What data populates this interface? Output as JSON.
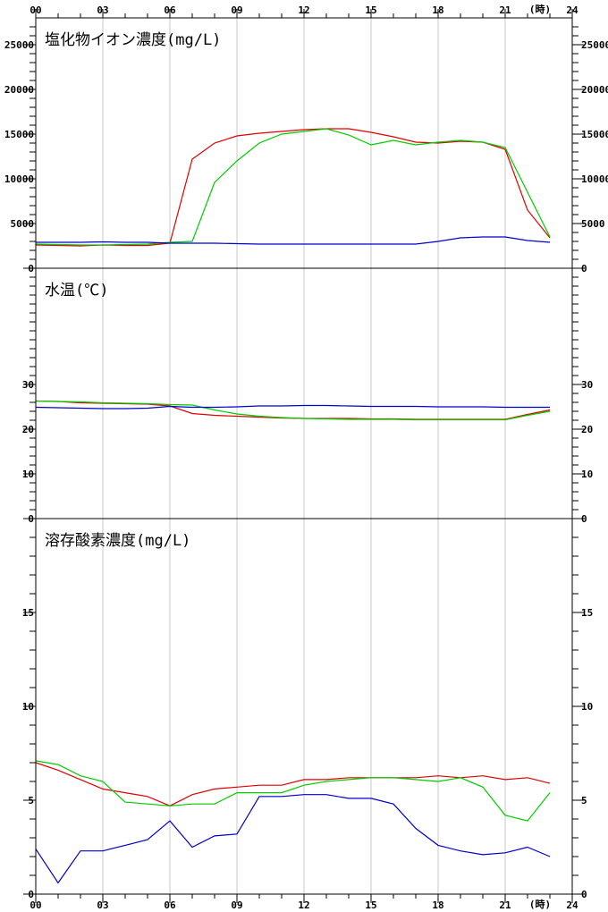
{
  "x_axis": {
    "ticks": [
      "00",
      "03",
      "06",
      "09",
      "12",
      "15",
      "18",
      "21",
      "24"
    ],
    "unit_label": "(時)"
  },
  "colors": {
    "red": "#e00000",
    "green": "#00cc00",
    "blue": "#0000cc",
    "grid": "#c8c8c8"
  },
  "chart_data": [
    {
      "type": "line",
      "title": "塩化物イオン濃度(mg/L)",
      "xlim": [
        0,
        24
      ],
      "ylim": [
        0,
        28000
      ],
      "yticks": [
        "0",
        "5000",
        "10000",
        "15000",
        "20000",
        "25000"
      ],
      "ytick_values": [
        0,
        5000,
        10000,
        15000,
        20000,
        25000
      ],
      "minor_step": 1000,
      "x": [
        0,
        1,
        2,
        3,
        4,
        5,
        6,
        7,
        8,
        9,
        10,
        11,
        12,
        13,
        14,
        15,
        16,
        17,
        18,
        19,
        20,
        21,
        22,
        23
      ],
      "series": [
        {
          "color": "red",
          "values": [
            2600,
            2550,
            2500,
            2600,
            2550,
            2550,
            2800,
            12200,
            14000,
            14800,
            15100,
            15300,
            15500,
            15600,
            15600,
            15200,
            14700,
            14100,
            14000,
            14200,
            14100,
            13300,
            6500,
            3400
          ]
        },
        {
          "color": "green",
          "values": [
            2700,
            2650,
            2600,
            2600,
            2650,
            2700,
            2900,
            3000,
            9600,
            12000,
            14000,
            15000,
            15300,
            15600,
            14900,
            13800,
            14300,
            13800,
            14100,
            14300,
            14100,
            13500,
            8500,
            3500
          ]
        },
        {
          "color": "blue",
          "values": [
            2900,
            2900,
            2900,
            2950,
            2900,
            2900,
            2800,
            2800,
            2800,
            2750,
            2700,
            2700,
            2700,
            2700,
            2700,
            2700,
            2700,
            2700,
            3000,
            3400,
            3500,
            3500,
            3100,
            2900
          ]
        }
      ]
    },
    {
      "type": "line",
      "title": "水温(℃)",
      "xlim": [
        0,
        24
      ],
      "ylim": [
        0,
        56
      ],
      "yticks": [
        "0",
        "10",
        "20",
        "30"
      ],
      "ytick_values": [
        0,
        10,
        20,
        30
      ],
      "minor_step": 2,
      "x": [
        0,
        1,
        2,
        3,
        4,
        5,
        6,
        7,
        8,
        9,
        10,
        11,
        12,
        13,
        14,
        15,
        16,
        17,
        18,
        19,
        20,
        21,
        22,
        23
      ],
      "series": [
        {
          "color": "red",
          "values": [
            26.3,
            26.2,
            25.9,
            25.8,
            25.7,
            25.6,
            25.2,
            23.5,
            23.1,
            22.9,
            22.7,
            22.5,
            22.4,
            22.4,
            22.4,
            22.3,
            22.3,
            22.2,
            22.2,
            22.2,
            22.2,
            22.2,
            23.3,
            24.3
          ]
        },
        {
          "color": "green",
          "values": [
            26.3,
            26.2,
            26.1,
            25.9,
            25.8,
            25.7,
            25.5,
            25.4,
            24.3,
            23.4,
            22.9,
            22.6,
            22.4,
            22.3,
            22.2,
            22.2,
            22.2,
            22.1,
            22.1,
            22.1,
            22.1,
            22.1,
            23.1,
            24.0
          ]
        },
        {
          "color": "blue",
          "values": [
            24.9,
            24.8,
            24.7,
            24.6,
            24.6,
            24.7,
            25.1,
            24.9,
            24.9,
            25.0,
            25.2,
            25.2,
            25.3,
            25.3,
            25.2,
            25.1,
            25.1,
            25.1,
            25.0,
            25.0,
            25.0,
            24.9,
            24.9,
            24.9
          ]
        }
      ]
    },
    {
      "type": "line",
      "title": "溶存酸素濃度(mg/L)",
      "xlim": [
        0,
        24
      ],
      "ylim": [
        0,
        20
      ],
      "yticks": [
        "0",
        "5",
        "10",
        "15"
      ],
      "ytick_values": [
        0,
        5,
        10,
        15
      ],
      "minor_step": 1,
      "x": [
        0,
        1,
        2,
        3,
        4,
        5,
        6,
        7,
        8,
        9,
        10,
        11,
        12,
        13,
        14,
        15,
        16,
        17,
        18,
        19,
        20,
        21,
        22,
        23
      ],
      "series": [
        {
          "color": "red",
          "values": [
            7.0,
            6.6,
            6.1,
            5.6,
            5.4,
            5.2,
            4.7,
            5.3,
            5.6,
            5.7,
            5.8,
            5.8,
            6.1,
            6.1,
            6.2,
            6.2,
            6.2,
            6.2,
            6.3,
            6.2,
            6.3,
            6.1,
            6.2,
            5.9
          ]
        },
        {
          "color": "green",
          "values": [
            7.1,
            6.9,
            6.3,
            6.0,
            4.9,
            4.8,
            4.7,
            4.8,
            4.8,
            5.4,
            5.4,
            5.4,
            5.8,
            6.0,
            6.1,
            6.2,
            6.2,
            6.1,
            6.0,
            6.2,
            5.7,
            4.2,
            3.9,
            5.4
          ]
        },
        {
          "color": "blue",
          "values": [
            2.4,
            0.6,
            2.3,
            2.3,
            2.6,
            2.9,
            3.9,
            2.5,
            3.1,
            3.2,
            5.2,
            5.2,
            5.3,
            5.3,
            5.1,
            5.1,
            4.8,
            3.5,
            2.6,
            2.3,
            2.1,
            2.2,
            2.5,
            2.0
          ]
        }
      ]
    }
  ]
}
